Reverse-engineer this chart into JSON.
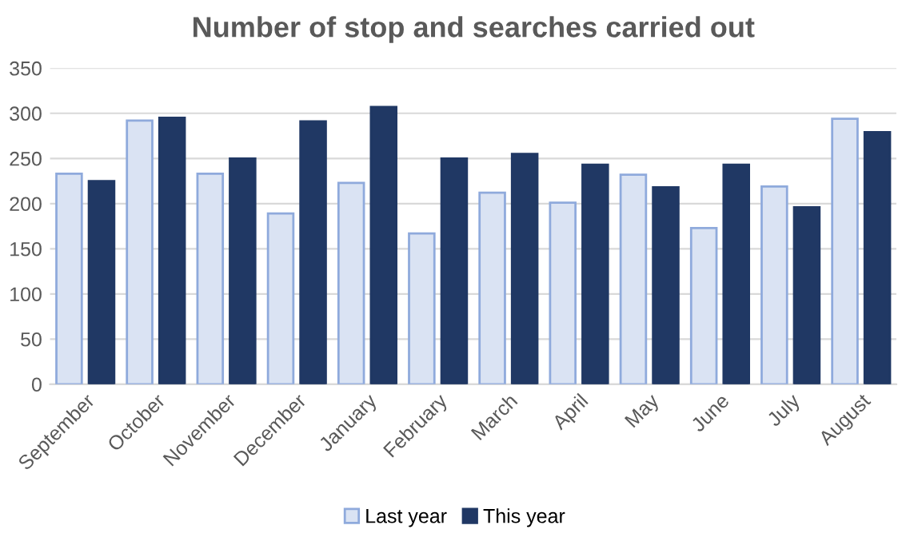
{
  "chart_data": {
    "type": "bar",
    "title": "Number of stop and searches carried out",
    "categories": [
      "September",
      "October",
      "November",
      "December",
      "January",
      "February",
      "March",
      "April",
      "May",
      "June",
      "July",
      "August"
    ],
    "series": [
      {
        "name": "Last year",
        "color": "#dae3f3",
        "values": [
          233,
          292,
          233,
          189,
          223,
          167,
          212,
          201,
          232,
          173,
          219,
          294
        ]
      },
      {
        "name": "This year",
        "color": "#203864",
        "values": [
          225,
          295,
          250,
          291,
          307,
          250,
          255,
          243,
          218,
          243,
          196,
          279
        ]
      }
    ],
    "ylim": [
      0,
      350
    ],
    "yticks": [
      0,
      50,
      100,
      150,
      200,
      250,
      300,
      350
    ],
    "grid": "y",
    "legend": "bottom"
  }
}
